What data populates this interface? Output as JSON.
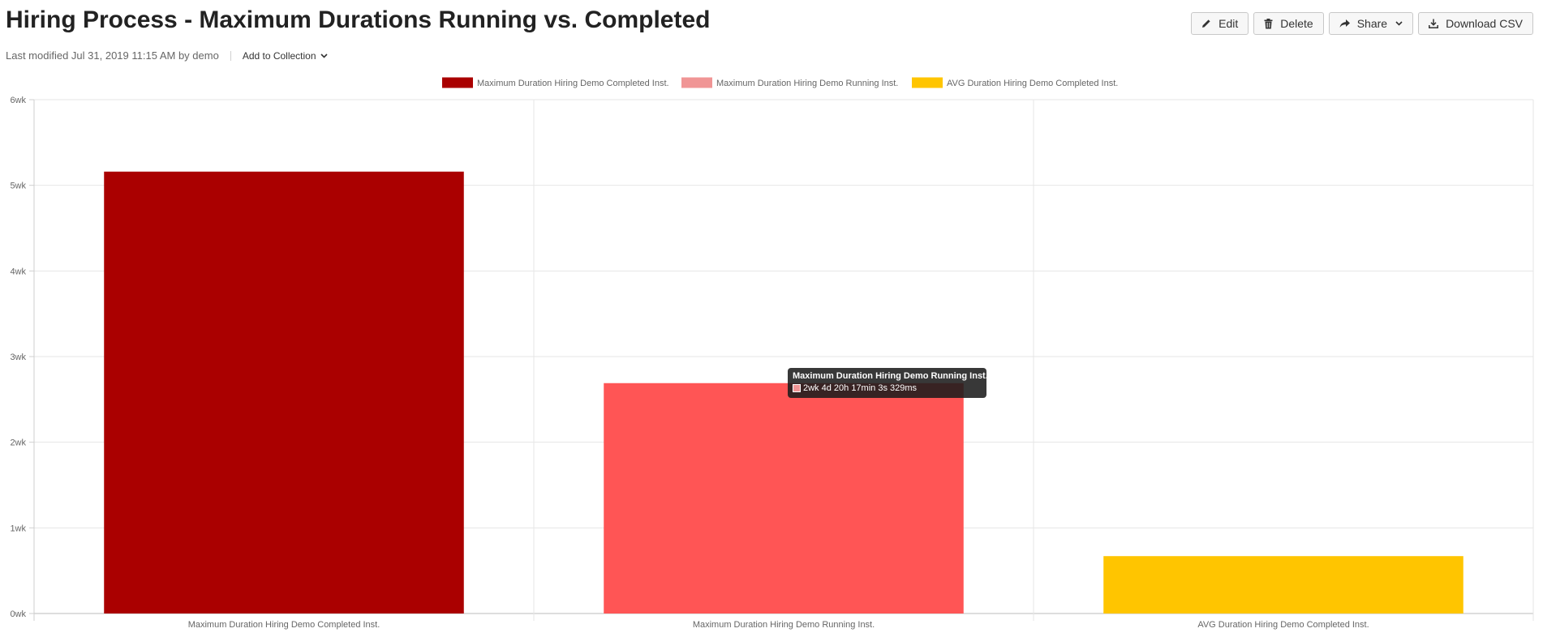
{
  "header": {
    "title": "Hiring Process - Maximum Durations Running vs. Completed",
    "last_modified": "Last modified Jul 31, 2019 11:15 AM by demo",
    "add_to_collection": "Add to Collection"
  },
  "toolbar": {
    "edit_label": "Edit",
    "delete_label": "Delete",
    "share_label": "Share",
    "download_label": "Download CSV"
  },
  "tooltip": {
    "title": "Maximum Duration Hiring Demo Running Inst.",
    "value": "2wk 4d 20h 17min 3s 329ms",
    "color": "#F09595"
  },
  "chart_data": {
    "type": "bar",
    "title": "",
    "xlabel": "",
    "ylabel": "",
    "y_unit": "wk",
    "ylim": [
      0,
      6
    ],
    "yticks": [
      "0wk",
      "1wk",
      "2wk",
      "3wk",
      "4wk",
      "5wk",
      "6wk"
    ],
    "grid": true,
    "legend_position": "top-center",
    "categories": [
      "Maximum Duration Hiring Demo Completed Inst.",
      "Maximum Duration Hiring Demo Running Inst.",
      "AVG Duration Hiring Demo Completed Inst."
    ],
    "series": [
      {
        "name": "Maximum Duration Hiring Demo Completed Inst.",
        "values": [
          5.16,
          null,
          null
        ],
        "color": "#AA0000",
        "legend_color": "#AA0000"
      },
      {
        "name": "Maximum Duration Hiring Demo Running Inst.",
        "values": [
          null,
          2.69,
          null
        ],
        "color": "#FF5555",
        "legend_color": "#F09595"
      },
      {
        "name": "AVG Duration Hiring Demo Completed Inst.",
        "values": [
          null,
          null,
          0.67
        ],
        "color": "#FFC500",
        "legend_color": "#FFC500"
      }
    ]
  }
}
